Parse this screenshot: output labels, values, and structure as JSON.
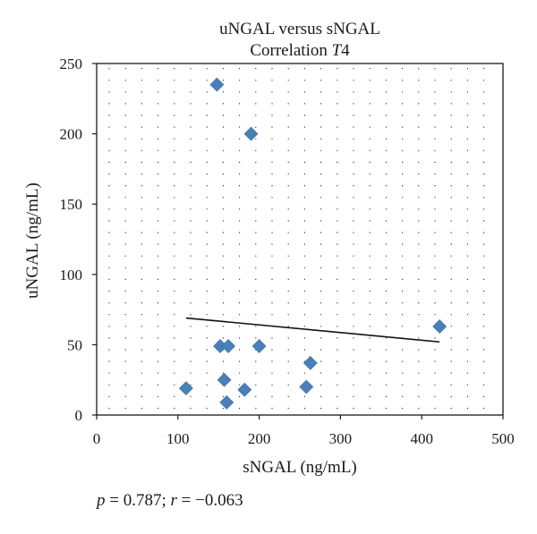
{
  "chart_data": {
    "type": "scatter",
    "title": "uNGAL versus sNGAL",
    "subtitle_prefix": "Correlation ",
    "subtitle_italic": "T",
    "subtitle_suffix": "4",
    "xlabel": "sNGAL (ng/mL)",
    "ylabel": "uNGAL (ng/mL)",
    "xlim": [
      0,
      500
    ],
    "ylim": [
      0,
      250
    ],
    "x_ticks": [
      0,
      100,
      200,
      300,
      400,
      500
    ],
    "y_ticks": [
      0,
      50,
      100,
      150,
      200,
      250
    ],
    "grid": "dotted",
    "marker": "diamond",
    "marker_color": "#4a7fb8",
    "points": [
      {
        "x": 148,
        "y": 235
      },
      {
        "x": 190,
        "y": 200
      },
      {
        "x": 110,
        "y": 19
      },
      {
        "x": 152,
        "y": 49
      },
      {
        "x": 162,
        "y": 49
      },
      {
        "x": 200,
        "y": 49
      },
      {
        "x": 157,
        "y": 25
      },
      {
        "x": 160,
        "y": 9
      },
      {
        "x": 182,
        "y": 18
      },
      {
        "x": 258,
        "y": 20
      },
      {
        "x": 263,
        "y": 37
      },
      {
        "x": 422,
        "y": 63
      }
    ],
    "trendline": {
      "x": [
        110,
        422
      ],
      "y": [
        69,
        52
      ]
    }
  },
  "stats": {
    "p_symbol": "p",
    "p_text": " = 0.787; ",
    "r_symbol": "r",
    "r_text": " = −0.063"
  }
}
